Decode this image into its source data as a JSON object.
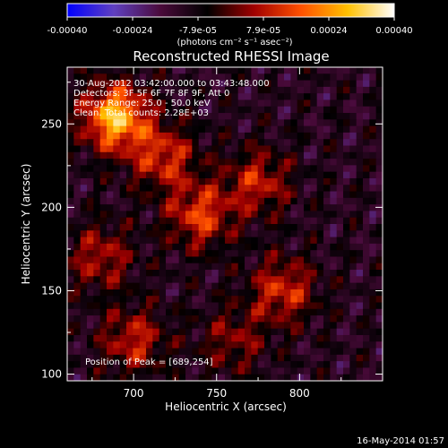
{
  "chart_data": {
    "type": "heatmap",
    "title": "Reconstructed RHESSI Image",
    "xlabel": "Heliocentric X (arcsec)",
    "ylabel": "Heliocentric Y (arcsec)",
    "xlim": [
      660,
      850
    ],
    "ylim": [
      96,
      284
    ],
    "x_ticks": [
      700,
      750,
      800
    ],
    "y_ticks": [
      100,
      150,
      200,
      250
    ],
    "colorbar": {
      "min": -0.0004,
      "max": 0.0004,
      "tick_labels": [
        "-0.00040",
        "-0.00024",
        "-7.9e-05",
        "7.9e-05",
        "0.00024",
        "0.00040"
      ],
      "units_label": "(photons cm⁻² s⁻¹ asec⁻²)",
      "colormap": [
        "#0000ff",
        "#6040c0",
        "#4a0a3a",
        "#000000",
        "#a00000",
        "#ff5000",
        "#ffc000",
        "#ffffff"
      ]
    },
    "annotations": {
      "time_range": "30-Aug-2012 03:42:00.000 to 03:43:48.000",
      "detectors": "Detectors: 3F 5F 6F 7F 8F 9F, Att 0",
      "energy_range": "Energy Range: 25.0 - 50.0 keV",
      "clean_counts": "Clean. Total counts: 2.28E+03",
      "peak_position": "Position of Peak = [689,254]"
    },
    "peak": {
      "x": 689,
      "y": 254
    },
    "sources": [
      {
        "x": 689,
        "y": 254,
        "amplitude": 1.0
      },
      {
        "x": 718,
        "y": 230,
        "amplitude": 0.55
      },
      {
        "x": 740,
        "y": 195,
        "amplitude": 0.6
      },
      {
        "x": 775,
        "y": 215,
        "amplitude": 0.5
      },
      {
        "x": 790,
        "y": 150,
        "amplitude": 0.55
      },
      {
        "x": 700,
        "y": 120,
        "amplitude": 0.5
      },
      {
        "x": 680,
        "y": 170,
        "amplitude": 0.45
      },
      {
        "x": 760,
        "y": 120,
        "amplitude": 0.35
      }
    ]
  },
  "footer": {
    "timestamp": "16-May-2014 01:57"
  }
}
